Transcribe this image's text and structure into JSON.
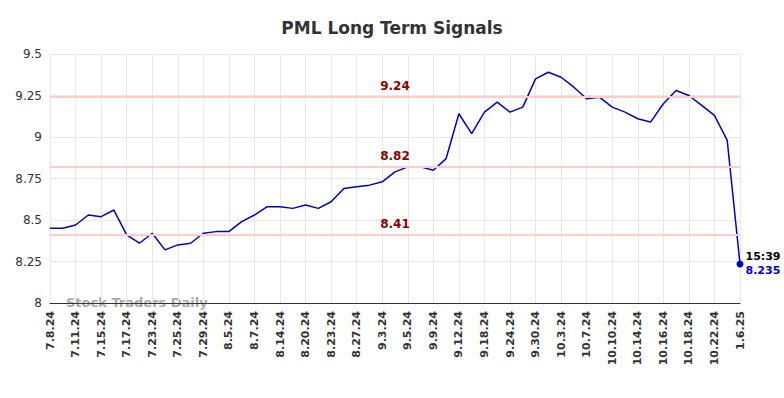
{
  "chart_data": {
    "type": "line",
    "title": "PML Long Term Signals",
    "categories": [
      "7.8.24",
      null,
      "7.11.24",
      null,
      "7.15.24",
      null,
      "7.17.24",
      null,
      "7.23.24",
      null,
      "7.25.24",
      null,
      "7.29.24",
      null,
      "8.5.24",
      null,
      "8.7.24",
      null,
      "8.14.24",
      null,
      "8.20.24",
      null,
      "8.23.24",
      null,
      "8.27.24",
      null,
      "9.3.24",
      null,
      "9.5.24",
      null,
      "9.9.24",
      null,
      "9.12.24",
      null,
      "9.18.24",
      null,
      "9.24.24",
      null,
      "9.30.24",
      null,
      "10.3.24",
      null,
      "10.7.24",
      null,
      "10.10.24",
      null,
      "10.14.24",
      null,
      "10.16.24",
      null,
      "10.18.24",
      null,
      "10.22.24",
      null,
      "1.6.25"
    ],
    "values": [
      8.45,
      8.45,
      8.47,
      8.53,
      8.52,
      8.56,
      8.41,
      8.36,
      8.42,
      8.32,
      8.35,
      8.36,
      8.42,
      8.43,
      8.43,
      8.49,
      8.53,
      8.58,
      8.58,
      8.57,
      8.59,
      8.57,
      8.61,
      8.69,
      8.7,
      8.71,
      8.73,
      8.79,
      8.82,
      8.82,
      8.8,
      8.87,
      9.14,
      9.02,
      9.15,
      9.21,
      9.15,
      9.18,
      9.35,
      9.39,
      9.36,
      9.3,
      9.23,
      9.24,
      9.18,
      9.15,
      9.11,
      9.09,
      9.2,
      9.28,
      9.25,
      9.19,
      9.13,
      8.98,
      8.235
    ],
    "color": "#0000cc",
    "ylim": [
      8,
      9.5
    ],
    "yticks": [
      8,
      8.25,
      8.5,
      8.75,
      9,
      9.25,
      9.5
    ],
    "grid": true,
    "signal_levels": [
      9.24,
      8.82,
      8.41
    ],
    "last_time": "15:39",
    "watermark": "Stock Traders Daily"
  }
}
